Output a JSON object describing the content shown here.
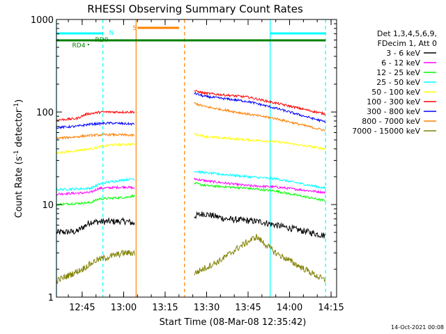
{
  "chart_data": {
    "type": "line",
    "title": "RHESSI Observing Summary Count Rates",
    "xlabel": "Start Time (08-Mar-08 12:35:42)",
    "ylabel_main": "Count Rate (s",
    "ylabel_sup1": "-1",
    "ylabel_mid": " detector",
    "ylabel_sup2": "-1",
    "ylabel_end": ")",
    "footer": "14-Oct-2021 00:08",
    "y_scale": "log",
    "xlim": [
      "12:35:42",
      "14:17:00"
    ],
    "ylim": [
      1,
      1000
    ],
    "x_ticks": [
      "12:45",
      "13:00",
      "13:15",
      "13:30",
      "13:45",
      "14:00",
      "14:15"
    ],
    "y_ticks": [
      "1",
      "10",
      "100",
      "1000"
    ],
    "legend_header": [
      "Det 1,3,4,5,6,9,",
      "FDecim 1, Att 0"
    ],
    "series": [
      {
        "name": "3 - 6 keV",
        "color": "#000000",
        "segments": [
          {
            "t": [
              "12:35:42",
              "12:43:00",
              "12:48:00",
              "13:01:00",
              "13:04:00"
            ],
            "v": [
              5.0,
              5.1,
              6.5,
              6.6,
              6.2
            ]
          },
          {
            "t": [
              "13:25:30",
              "13:29:00",
              "13:37:00",
              "13:50:00",
              "13:55:00",
              "14:13:00"
            ],
            "v": [
              7.5,
              8.0,
              7.0,
              6.5,
              6.0,
              4.6
            ]
          }
        ]
      },
      {
        "name": "6 - 12 keV",
        "color": "#ff00ff",
        "segments": [
          {
            "t": [
              "12:35:42",
              "12:48:00",
              "12:51:00",
              "13:01:00",
              "13:04:00"
            ],
            "v": [
              13.0,
              13.5,
              15.0,
              15.5,
              15.0
            ]
          },
          {
            "t": [
              "13:25:30",
              "13:30:00",
              "13:45:00",
              "13:55:00",
              "14:13:00"
            ],
            "v": [
              19.0,
              18.0,
              16.0,
              15.5,
              13.5
            ]
          }
        ]
      },
      {
        "name": "12 - 25 keV",
        "color": "#00ff00",
        "segments": [
          {
            "t": [
              "12:35:42",
              "12:48:00",
              "12:51:00",
              "13:01:00",
              "13:04:00"
            ],
            "v": [
              10.0,
              10.5,
              11.5,
              12.0,
              12.5
            ]
          },
          {
            "t": [
              "13:25:30",
              "13:30:00",
              "13:45:00",
              "13:55:00",
              "14:13:00"
            ],
            "v": [
              17.0,
              16.0,
              15.0,
              14.0,
              11.0
            ]
          }
        ]
      },
      {
        "name": "25 - 50 keV",
        "color": "#00ffff",
        "segments": [
          {
            "t": [
              "12:35:42",
              "12:48:00",
              "12:52:00",
              "13:00:00",
              "13:04:00"
            ],
            "v": [
              14.5,
              15.0,
              17.0,
              18.5,
              19.0
            ]
          },
          {
            "t": [
              "13:25:30",
              "13:30:00",
              "13:45:00",
              "13:55:00",
              "14:13:00"
            ],
            "v": [
              23.0,
              22.0,
              20.0,
              19.0,
              15.0
            ]
          }
        ]
      },
      {
        "name": "50 - 100 keV",
        "color": "#ffff00",
        "segments": [
          {
            "t": [
              "12:35:42",
              "12:45:00",
              "12:48:00",
              "12:55:00",
              "13:04:00"
            ],
            "v": [
              36.0,
              39.0,
              40.0,
              44.0,
              45.0
            ]
          },
          {
            "t": [
              "13:25:30",
              "13:30:00",
              "13:45:00",
              "13:55:00",
              "14:13:00"
            ],
            "v": [
              58.0,
              54.0,
              50.0,
              48.0,
              40.0
            ]
          }
        ]
      },
      {
        "name": "100 - 300 keV",
        "color": "#ff0000",
        "segments": [
          {
            "t": [
              "12:35:42",
              "12:43:00",
              "12:46:30",
              "12:52:00",
              "13:04:00"
            ],
            "v": [
              82.0,
              85.0,
              95.0,
              100.0,
              100.0
            ]
          },
          {
            "t": [
              "13:25:30",
              "13:29:00",
              "13:45:00",
              "13:55:00",
              "14:13:00"
            ],
            "v": [
              170.0,
              160.0,
              145.0,
              125.0,
              95.0
            ]
          }
        ]
      },
      {
        "name": "300 - 800 keV",
        "color": "#0000ff",
        "segments": [
          {
            "t": [
              "12:35:42",
              "12:43:00",
              "12:48:00",
              "12:55:00",
              "13:04:00"
            ],
            "v": [
              68.0,
              70.0,
              74.0,
              76.0,
              74.0
            ]
          },
          {
            "t": [
              "13:25:30",
              "13:29:00",
              "13:45:00",
              "13:55:00",
              "14:13:00"
            ],
            "v": [
              160.0,
              148.0,
              130.0,
              110.0,
              78.0
            ]
          }
        ]
      },
      {
        "name": "800 - 7000 keV",
        "color": "#ff8000",
        "segments": [
          {
            "t": [
              "12:35:42",
              "12:43:00",
              "12:48:00",
              "12:55:00",
              "13:04:00"
            ],
            "v": [
              52.0,
              54.0,
              56.0,
              57.0,
              56.0
            ]
          },
          {
            "t": [
              "13:25:30",
              "13:29:00",
              "13:45:00",
              "13:55:00",
              "14:13:00"
            ],
            "v": [
              125.0,
              115.0,
              95.0,
              85.0,
              63.0
            ]
          }
        ]
      },
      {
        "name": "7000 - 15000 keV",
        "color": "#808000",
        "segments": [
          {
            "t": [
              "12:35:42",
              "12:45:00",
              "12:50:00",
              "13:00:00",
              "13:04:00"
            ],
            "v": [
              1.5,
              2.0,
              2.5,
              3.0,
              3.0
            ]
          },
          {
            "t": [
              "13:25:30",
              "13:35:00",
              "13:42:00",
              "13:48:00",
              "13:55:00",
              "14:13:00"
            ],
            "v": [
              1.8,
              2.5,
              3.5,
              4.5,
              3.0,
              1.5
            ]
          }
        ]
      }
    ],
    "flag_bars": [
      {
        "label": "N",
        "color": "#00ffff",
        "ranges": [
          [
            "12:35:42",
            "12:52:30"
          ],
          [
            "13:53:00",
            "14:13:00"
          ]
        ]
      },
      {
        "label": "S",
        "color": "#ff8000",
        "ranges": [
          [
            "13:05:00",
            "13:20:00"
          ]
        ]
      },
      {
        "label": "RD0",
        "color": "#008000",
        "ranges": [
          [
            "12:35:42",
            "14:13:00"
          ]
        ]
      },
      {
        "label": "RD4",
        "color": "#008000",
        "ranges": [
          [
            "12:47:00",
            "12:47:30"
          ]
        ]
      }
    ],
    "vertical_lines": [
      {
        "t": "12:35:42",
        "color": "#00ffff",
        "style": "solid"
      },
      {
        "t": "12:52:30",
        "color": "#00ffff",
        "style": "dashed"
      },
      {
        "t": "13:53:00",
        "color": "#00ffff",
        "style": "solid"
      },
      {
        "t": "14:13:00",
        "color": "#00ffff",
        "style": "dashed"
      },
      {
        "t": "13:04:30",
        "color": "#ff8000",
        "style": "solid"
      },
      {
        "t": "13:22:00",
        "color": "#ff8000",
        "style": "dashed"
      }
    ]
  }
}
